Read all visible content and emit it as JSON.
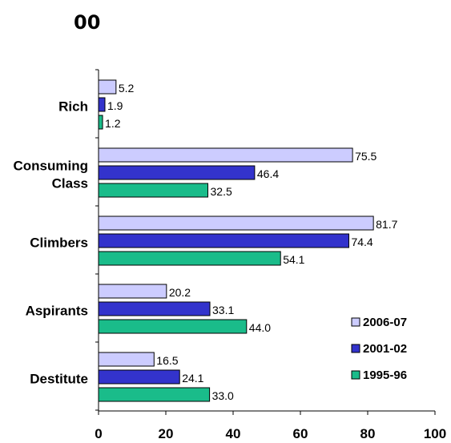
{
  "chart_data": {
    "type": "bar",
    "orientation": "horizontal",
    "title": "00",
    "categories": [
      "Rich",
      "Consuming Class",
      "Climbers",
      "Aspirants",
      "Destitute"
    ],
    "category_lines": [
      [
        "Rich"
      ],
      [
        "Consuming",
        "Class"
      ],
      [
        "Climbers"
      ],
      [
        "Aspirants"
      ],
      [
        "Destitute"
      ]
    ],
    "series": [
      {
        "name": "2006-07",
        "color": "#ccccff",
        "values": [
          5.2,
          75.5,
          81.7,
          20.2,
          16.5
        ]
      },
      {
        "name": "2001-02",
        "color": "#3333cc",
        "values": [
          1.9,
          46.4,
          74.4,
          33.1,
          24.1
        ]
      },
      {
        "name": "1995-96",
        "color": "#1abc8a",
        "values": [
          1.2,
          32.5,
          54.1,
          44.0,
          33.0
        ]
      }
    ],
    "value_labels": [
      [
        "5.2",
        "75.5",
        "81.7",
        "20.2",
        "16.5"
      ],
      [
        "1.9",
        "46.4",
        "74.4",
        "33.1",
        "24.1"
      ],
      [
        "1.2",
        "32.5",
        "54.1",
        "44.0",
        "33.0"
      ]
    ],
    "xlim": [
      0,
      100
    ],
    "xticks": [
      0,
      20,
      40,
      60,
      80,
      100
    ],
    "xlabel": "",
    "ylabel": "",
    "grid": false,
    "legend_position": "bottom-right"
  }
}
